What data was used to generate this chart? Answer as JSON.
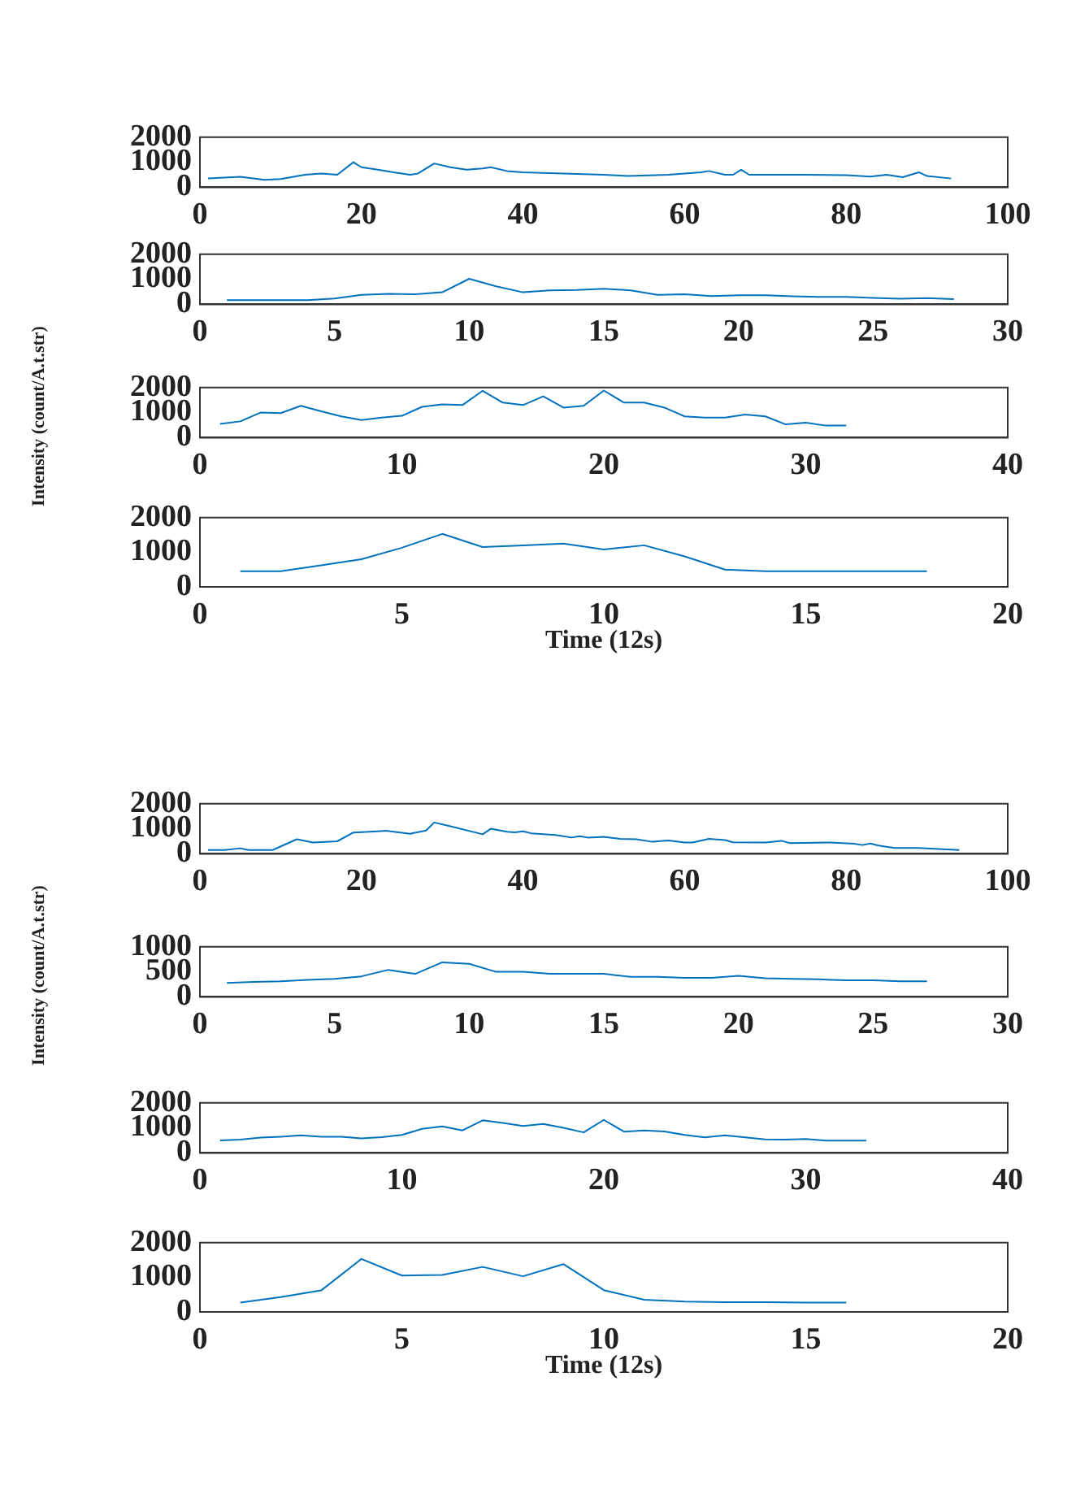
{
  "chart_data": [
    {
      "type": "line",
      "x": [
        1,
        5,
        8,
        10,
        13,
        15,
        17,
        19,
        20,
        22,
        24,
        26,
        27,
        29,
        31,
        33,
        35,
        36,
        38,
        40,
        45,
        50,
        53,
        58,
        62,
        63,
        65,
        66,
        67,
        68,
        75,
        80,
        83,
        85,
        87,
        89,
        90,
        93
      ],
      "series": [
        {
          "color": "#0072bd",
          "values": [
            350,
            420,
            300,
            330,
            500,
            550,
            500,
            1000,
            800,
            700,
            600,
            500,
            550,
            950,
            800,
            700,
            750,
            800,
            650,
            600,
            550,
            500,
            450,
            500,
            600,
            650,
            500,
            500,
            700,
            500,
            500,
            480,
            430,
            500,
            400,
            600,
            450,
            350
          ]
        }
      ],
      "xlim": [
        0,
        100
      ],
      "xticks": [
        0,
        20,
        40,
        60,
        80,
        100
      ],
      "ylim": [
        0,
        2000
      ],
      "yticks": [
        0,
        1000,
        2000
      ],
      "grid": false,
      "legend": false
    },
    {
      "type": "line",
      "x": [
        1,
        2,
        3,
        4,
        5,
        6,
        7,
        8,
        9,
        10,
        11,
        12,
        13,
        14,
        15,
        16,
        17,
        18,
        19,
        20,
        21,
        22,
        23,
        24,
        25,
        26,
        27,
        28
      ],
      "series": [
        {
          "color": "#0072bd",
          "values": [
            170,
            170,
            170,
            170,
            230,
            380,
            420,
            400,
            480,
            1020,
            720,
            480,
            560,
            570,
            620,
            560,
            380,
            400,
            330,
            360,
            360,
            320,
            300,
            300,
            260,
            220,
            250,
            210
          ]
        }
      ],
      "xlim": [
        0,
        30
      ],
      "xticks": [
        0,
        5,
        10,
        15,
        20,
        25,
        30
      ],
      "ylim": [
        0,
        2000
      ],
      "yticks": [
        0,
        1000,
        2000
      ],
      "grid": false,
      "legend": false
    },
    {
      "type": "line",
      "ylabel": "Intensity (count/A.t.str)",
      "x": [
        1,
        2,
        3,
        4,
        5,
        6,
        7,
        8,
        9,
        10,
        11,
        12,
        13,
        14,
        15,
        16,
        17,
        18,
        19,
        20,
        21,
        22,
        23,
        24,
        25,
        26,
        27,
        28,
        29,
        30,
        31,
        32
      ],
      "series": [
        {
          "color": "#0072bd",
          "values": [
            550,
            650,
            1000,
            980,
            1270,
            1050,
            850,
            700,
            800,
            870,
            1230,
            1330,
            1300,
            1870,
            1400,
            1300,
            1650,
            1200,
            1270,
            1880,
            1400,
            1400,
            1200,
            850,
            800,
            800,
            920,
            850,
            530,
            600,
            480,
            480
          ]
        }
      ],
      "xlim": [
        0,
        40
      ],
      "xticks": [
        0,
        10,
        20,
        30,
        40
      ],
      "ylim": [
        0,
        2000
      ],
      "yticks": [
        0,
        1000,
        2000
      ],
      "grid": false,
      "legend": false
    },
    {
      "type": "line",
      "xlabel": "Time (12s)",
      "x": [
        1,
        2,
        3,
        4,
        5,
        6,
        7,
        8,
        9,
        10,
        11,
        12,
        13,
        14,
        15,
        16,
        17,
        18
      ],
      "series": [
        {
          "color": "#0072bd",
          "values": [
            450,
            450,
            620,
            800,
            1130,
            1530,
            1150,
            1200,
            1250,
            1080,
            1200,
            880,
            500,
            450,
            450,
            450,
            450,
            450
          ]
        }
      ],
      "xlim": [
        0,
        20
      ],
      "xticks": [
        0,
        5,
        10,
        15,
        20
      ],
      "ylim": [
        0,
        2000
      ],
      "yticks": [
        0,
        1000,
        2000
      ],
      "grid": false,
      "legend": false
    },
    {
      "type": "line",
      "x": [
        1,
        3,
        5,
        6,
        9,
        12,
        14,
        17,
        19,
        22,
        23,
        26,
        28,
        29,
        31,
        35,
        36,
        38,
        39,
        40,
        41,
        44,
        46,
        47,
        48,
        50,
        52,
        54,
        56,
        58,
        60,
        61,
        63,
        65,
        66,
        70,
        72,
        73,
        78,
        81,
        82,
        83,
        84,
        86,
        89,
        94
      ],
      "series": [
        {
          "color": "#0072bd",
          "values": [
            150,
            150,
            220,
            150,
            150,
            580,
            450,
            500,
            850,
            900,
            920,
            800,
            930,
            1250,
            1100,
            780,
            1000,
            880,
            860,
            900,
            820,
            750,
            650,
            700,
            650,
            680,
            600,
            580,
            480,
            530,
            450,
            450,
            600,
            550,
            460,
            450,
            520,
            430,
            450,
            400,
            350,
            410,
            330,
            230,
            230,
            150
          ]
        }
      ],
      "xlim": [
        0,
        100
      ],
      "xticks": [
        0,
        20,
        40,
        60,
        80,
        100
      ],
      "ylim": [
        0,
        2000
      ],
      "yticks": [
        0,
        1000,
        2000
      ],
      "grid": false,
      "legend": false
    },
    {
      "type": "line",
      "ylabel": "Intensity (count/A.t.str)",
      "x": [
        1,
        2,
        3,
        4,
        5,
        6,
        7,
        8,
        9,
        10,
        11,
        12,
        13,
        14,
        15,
        16,
        17,
        18,
        19,
        20,
        21,
        22,
        23,
        24,
        25,
        26,
        27
      ],
      "series": [
        {
          "color": "#0072bd",
          "values": [
            280,
            300,
            310,
            340,
            360,
            410,
            540,
            460,
            690,
            660,
            500,
            500,
            460,
            460,
            460,
            400,
            400,
            380,
            380,
            420,
            370,
            360,
            350,
            330,
            330,
            310,
            310
          ]
        }
      ],
      "xlim": [
        0,
        30
      ],
      "xticks": [
        0,
        5,
        10,
        15,
        20,
        25,
        30
      ],
      "ylim": [
        0,
        1000
      ],
      "yticks": [
        0,
        500,
        1000
      ],
      "grid": false,
      "legend": false
    },
    {
      "type": "line",
      "x": [
        1,
        2,
        3,
        4,
        5,
        6,
        7,
        8,
        9,
        10,
        11,
        12,
        13,
        14,
        15,
        16,
        17,
        18,
        19,
        20,
        21,
        22,
        23,
        24,
        25,
        26,
        27,
        28,
        29,
        30,
        31,
        32,
        33
      ],
      "series": [
        {
          "color": "#0072bd",
          "values": [
            500,
            530,
            610,
            650,
            700,
            650,
            650,
            580,
            630,
            720,
            960,
            1060,
            900,
            1300,
            1200,
            1080,
            1160,
            1000,
            820,
            1320,
            850,
            900,
            860,
            720,
            620,
            700,
            620,
            540,
            530,
            560,
            490,
            490,
            490
          ]
        }
      ],
      "xlim": [
        0,
        40
      ],
      "xticks": [
        0,
        10,
        20,
        30,
        40
      ],
      "ylim": [
        0,
        2000
      ],
      "yticks": [
        0,
        1000,
        2000
      ],
      "grid": false,
      "legend": false
    },
    {
      "type": "line",
      "xlabel": "Time (12s)",
      "x": [
        1,
        2,
        3,
        4,
        5,
        6,
        7,
        8,
        9,
        10,
        11,
        12,
        13,
        14,
        15,
        16
      ],
      "series": [
        {
          "color": "#0072bd",
          "values": [
            270,
            430,
            620,
            1530,
            1050,
            1070,
            1300,
            1030,
            1380,
            630,
            350,
            300,
            280,
            280,
            270,
            270
          ]
        }
      ],
      "xlim": [
        0,
        20
      ],
      "xticks": [
        0,
        5,
        10,
        15,
        20
      ],
      "ylim": [
        0,
        2000
      ],
      "yticks": [
        0,
        1000,
        2000
      ],
      "grid": false,
      "legend": false
    }
  ]
}
